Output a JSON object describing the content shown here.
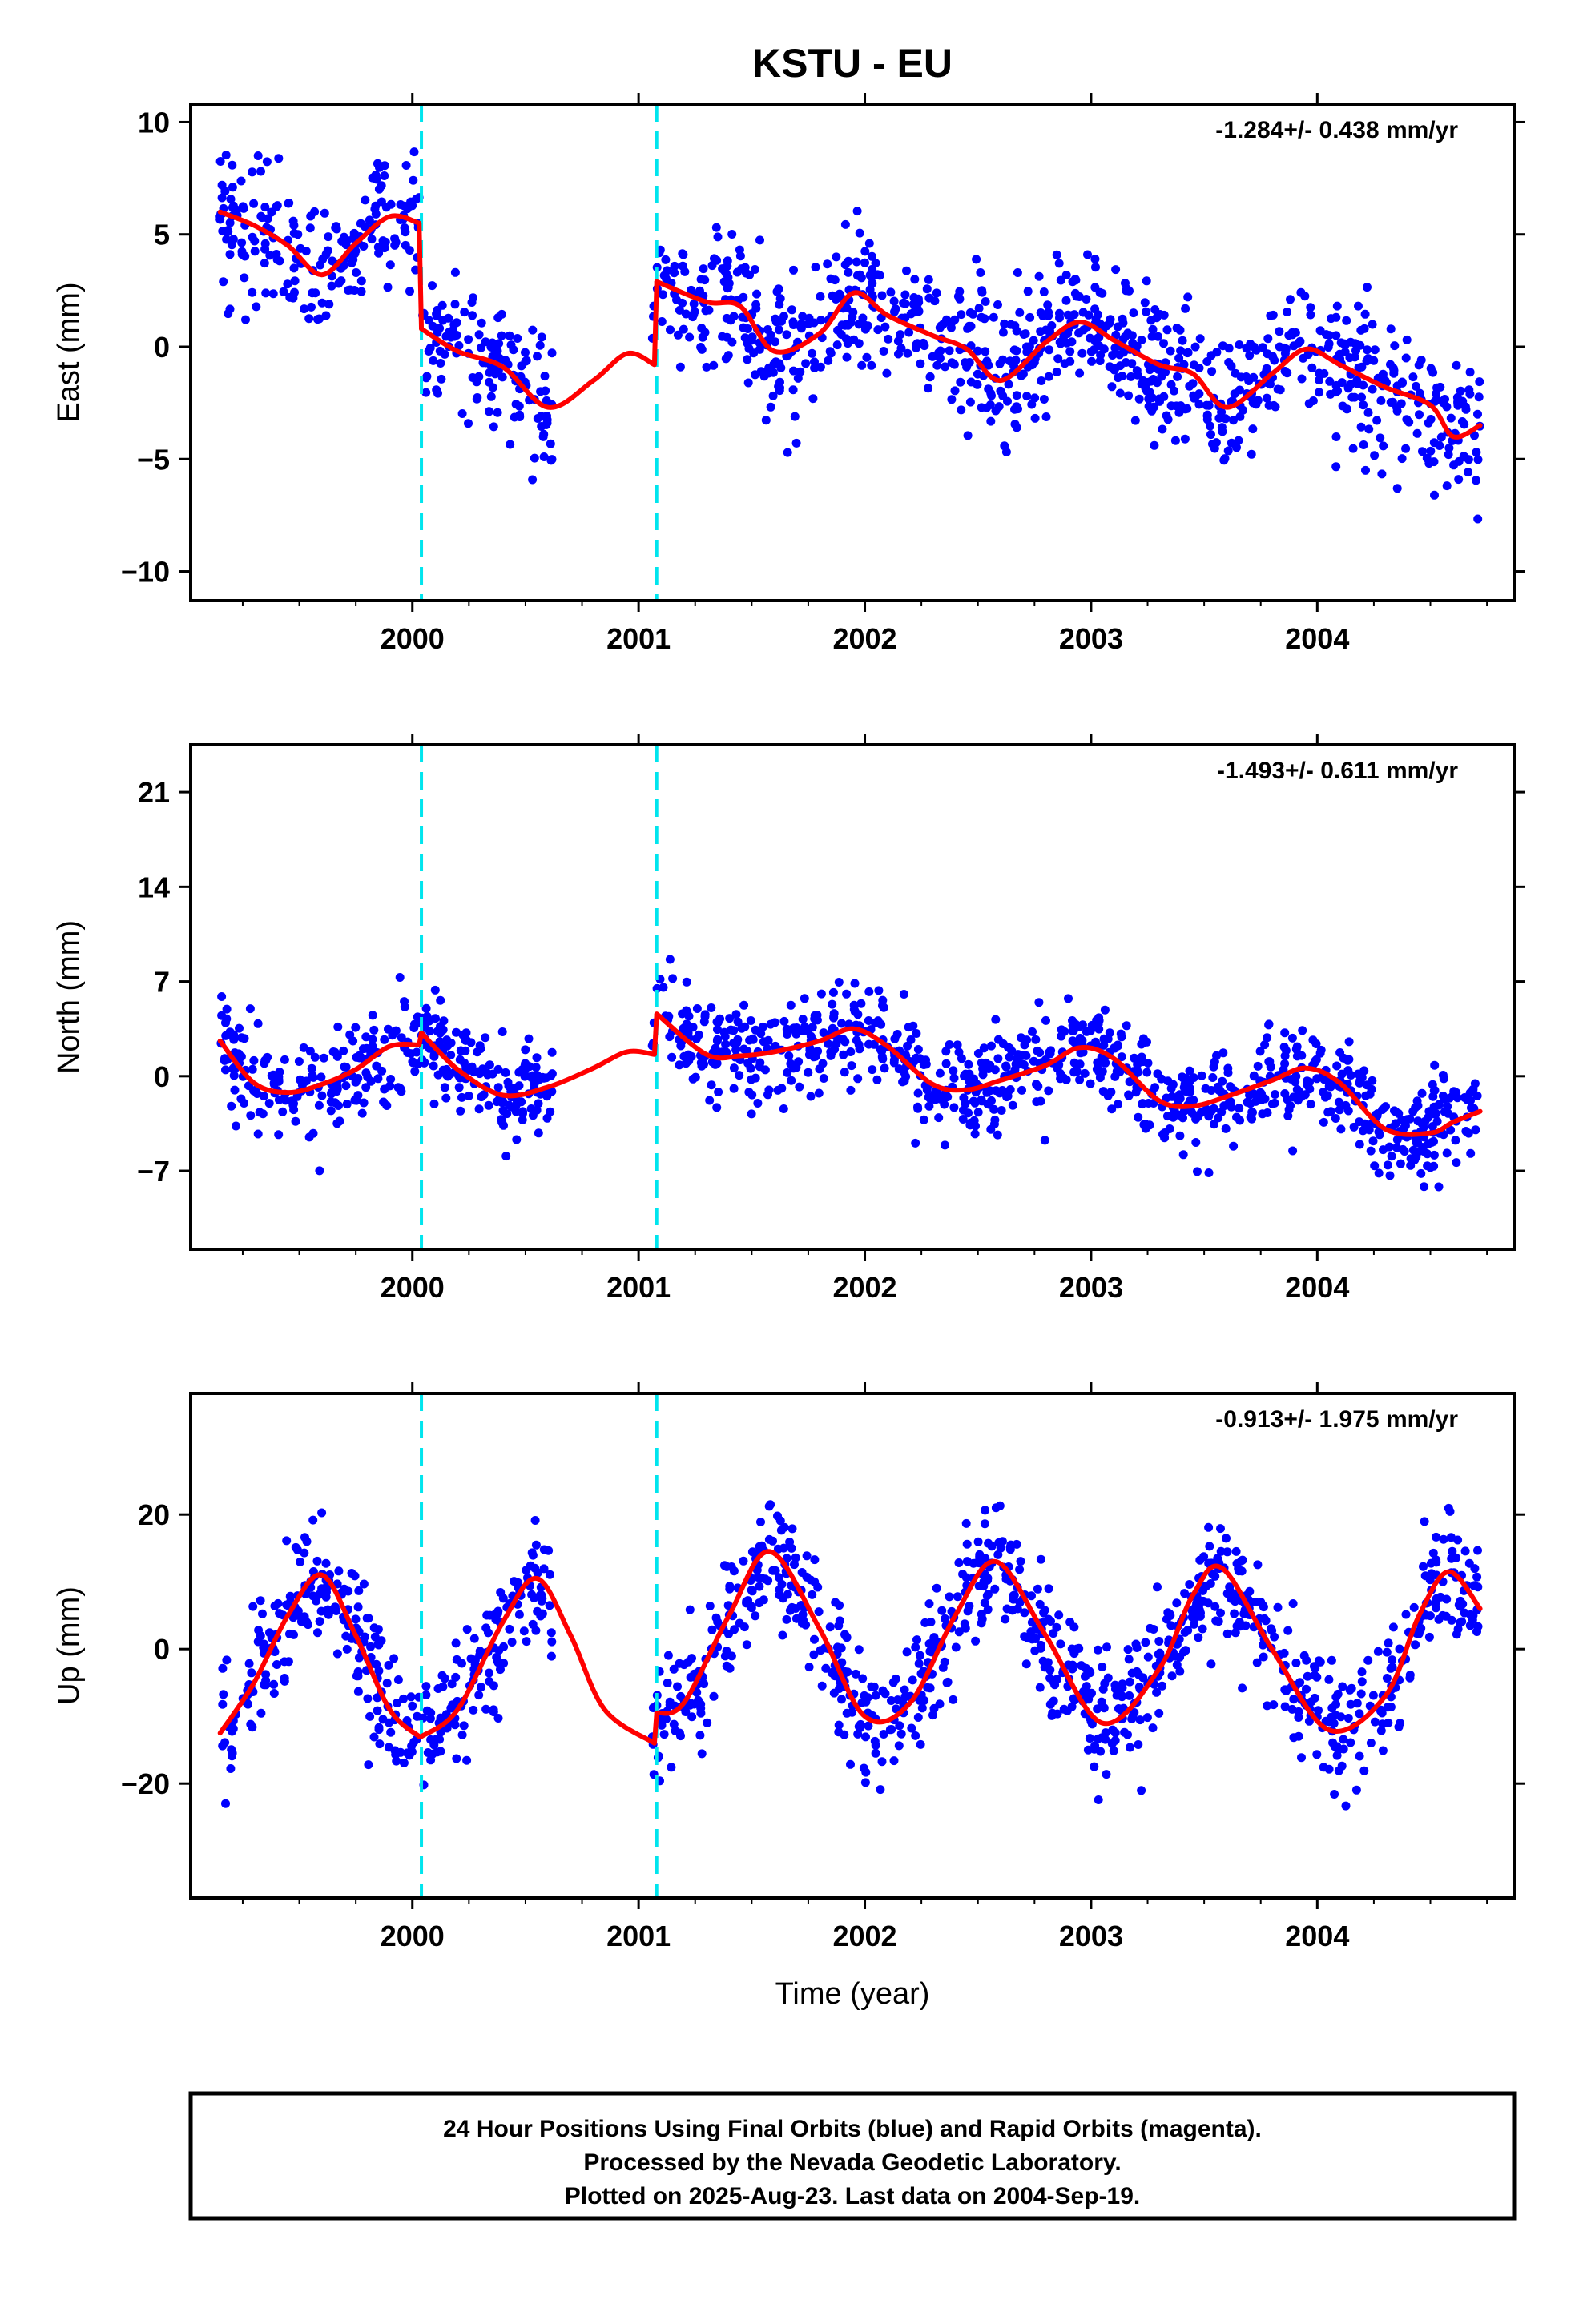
{
  "title": "KSTU - EU",
  "xlabel": "Time (year)",
  "note_lines": [
    "24 Hour Positions Using Final Orbits (blue) and Rapid Orbits (magenta).",
    "Processed by the Nevada Geodetic Laboratory.",
    "Plotted on 2025-Aug-23. Last data on 2004-Sep-19."
  ],
  "colors": {
    "points": "#0000ff",
    "model": "#ff0000",
    "breaks": "#00e5ee",
    "frame": "#000000"
  },
  "chart_data": [
    {
      "type": "scatter",
      "panel": "East",
      "ylabel": "East (mm)",
      "rate_label": "-1.284+/- 0.438 mm/yr",
      "xlim": [
        1999.02,
        2004.87
      ],
      "ylim": [
        -11.3,
        10.8
      ],
      "x_ticks": [
        2000,
        2001,
        2002,
        2003,
        2004
      ],
      "y_ticks": [
        -10,
        -5,
        0,
        5,
        10
      ],
      "y_tick_labels": [
        "−10",
        "−5",
        "0",
        "5",
        "10"
      ],
      "breaks": [
        2000.04,
        2001.08
      ],
      "model_segments": [
        {
          "x": [
            1999.15,
            1999.3,
            1999.45,
            1999.6,
            1999.75,
            1999.9,
            2000.03
          ],
          "y": [
            6.0,
            5.4,
            4.5,
            3.2,
            4.6,
            5.8,
            5.5
          ]
        },
        {
          "x": [
            2000.04,
            2000.2,
            2000.4,
            2000.6,
            2000.8,
            2000.95,
            2001.07
          ],
          "y": [
            0.8,
            -0.2,
            -0.9,
            -2.7,
            -1.5,
            -0.3,
            -0.8
          ]
        },
        {
          "x": [
            2001.08,
            2001.3,
            2001.45,
            2001.6,
            2001.8,
            2001.95,
            2002.1,
            2002.3,
            2002.45,
            2002.6,
            2002.8,
            2002.95,
            2003.1,
            2003.3,
            2003.45,
            2003.6,
            2003.8,
            2003.95,
            2004.1,
            2004.3,
            2004.5,
            2004.6,
            2004.72
          ],
          "y": [
            2.9,
            2.0,
            1.8,
            -0.2,
            0.6,
            2.4,
            1.4,
            0.5,
            -0.1,
            -1.5,
            0.2,
            1.1,
            0.3,
            -0.8,
            -1.2,
            -2.7,
            -1.2,
            -0.1,
            -0.8,
            -1.8,
            -2.6,
            -4.0,
            -3.5
          ]
        }
      ],
      "points": {
        "count": 1350,
        "x_range": [
          1999.15,
          2004.72
        ],
        "spread": 1.5
      }
    },
    {
      "type": "scatter",
      "panel": "North",
      "ylabel": "North (mm)",
      "rate_label": "-1.493+/- 0.611 mm/yr",
      "xlim": [
        1999.02,
        2004.87
      ],
      "ylim": [
        -12.8,
        24.5
      ],
      "x_ticks": [
        2000,
        2001,
        2002,
        2003,
        2004
      ],
      "y_ticks": [
        -7,
        0,
        7,
        14,
        21
      ],
      "y_tick_labels": [
        "−7",
        "0",
        "7",
        "14",
        "21"
      ],
      "breaks": [
        2000.04,
        2001.08
      ],
      "model_segments": [
        {
          "x": [
            1999.15,
            1999.3,
            1999.45,
            1999.6,
            1999.75,
            1999.9,
            2000.03
          ],
          "y": [
            2.6,
            -0.5,
            -1.2,
            -0.6,
            0.5,
            2.2,
            2.3
          ]
        },
        {
          "x": [
            2000.04,
            2000.2,
            2000.4,
            2000.6,
            2000.8,
            2000.95,
            2001.07
          ],
          "y": [
            3.2,
            0.5,
            -1.4,
            -0.8,
            0.6,
            1.8,
            1.6
          ]
        },
        {
          "x": [
            2001.08,
            2001.3,
            2001.45,
            2001.6,
            2001.8,
            2001.95,
            2002.1,
            2002.3,
            2002.45,
            2002.6,
            2002.8,
            2002.95,
            2003.1,
            2003.3,
            2003.45,
            2003.6,
            2003.8,
            2003.95,
            2004.1,
            2004.3,
            2004.5,
            2004.6,
            2004.72
          ],
          "y": [
            4.6,
            1.6,
            1.5,
            1.8,
            2.6,
            3.5,
            2.2,
            -0.6,
            -1.0,
            -0.3,
            0.8,
            2.1,
            1.3,
            -1.8,
            -2.2,
            -1.5,
            -0.3,
            0.6,
            -0.5,
            -3.9,
            -4.2,
            -3.4,
            -2.6
          ]
        }
      ],
      "points": {
        "count": 1350,
        "x_range": [
          1999.15,
          2004.72
        ],
        "spread": 1.8
      }
    },
    {
      "type": "scatter",
      "panel": "Up",
      "ylabel": "Up (mm)",
      "rate_label": "-0.913+/- 1.975 mm/yr",
      "xlim": [
        1999.02,
        2004.87
      ],
      "ylim": [
        -37,
        38
      ],
      "x_ticks": [
        2000,
        2001,
        2002,
        2003,
        2004
      ],
      "y_ticks": [
        -20,
        0,
        20
      ],
      "y_tick_labels": [
        "−20",
        "0",
        "20"
      ],
      "breaks": [
        2000.04,
        2001.08
      ],
      "model_segments": [
        {
          "x": [
            1999.15,
            1999.3,
            1999.45,
            1999.6,
            1999.75,
            1999.9,
            2000.03
          ],
          "y": [
            -12.5,
            -5,
            5,
            11,
            2,
            -9,
            -13
          ]
        },
        {
          "x": [
            2000.04,
            2000.2,
            2000.4,
            2000.55,
            2000.7,
            2000.85,
            2001.07
          ],
          "y": [
            -13,
            -9,
            4,
            10.5,
            2,
            -9,
            -14
          ]
        },
        {
          "x": [
            2001.08,
            2001.2,
            2001.4,
            2001.58,
            2001.8,
            2002.0,
            2002.2,
            2002.4,
            2002.58,
            2002.8,
            2003.05,
            2003.3,
            2003.45,
            2003.58,
            2003.8,
            2004.05,
            2004.3,
            2004.45,
            2004.58,
            2004.72
          ],
          "y": [
            -9.5,
            -8,
            5,
            14.5,
            3,
            -10,
            -8,
            5,
            13,
            2,
            -11,
            -3,
            8,
            12,
            0,
            -12,
            -7,
            5,
            11.5,
            6
          ]
        }
      ],
      "points": {
        "count": 1350,
        "x_range": [
          1999.15,
          2004.72
        ],
        "spread": 4.5
      }
    }
  ]
}
